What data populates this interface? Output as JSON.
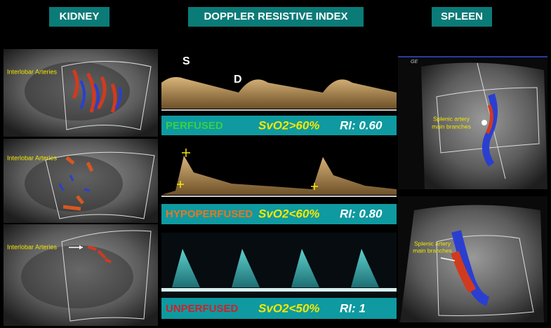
{
  "headers": {
    "kidney": "KIDNEY",
    "doppler": "DOPPLER RESISTIVE INDEX",
    "spleen": "SPLEEN"
  },
  "kidney_panels": [
    {
      "label": "Interlobar Arteries"
    },
    {
      "label": "Interlobar Arteries"
    },
    {
      "label": "Interlobar Arteries"
    }
  ],
  "doppler_panels": [
    {
      "peak_labels": [
        "S",
        "D"
      ],
      "status": "PERFUSED",
      "svo2": "SvO2>60%",
      "ri": "RI: 0.60"
    },
    {
      "status": "HYPOPERFUSED",
      "svo2": "SvO2<60%",
      "ri": "RI: 0.80"
    },
    {
      "status": "UNPERFUSED",
      "svo2": "SvO2<50%",
      "ri": "RI: 1"
    }
  ],
  "spleen_panels": [
    {
      "logo": "GE",
      "label_lines": [
        "Splenic artery",
        "main branches"
      ]
    },
    {
      "label_lines": [
        "Splenic artery",
        "main branches"
      ]
    }
  ]
}
